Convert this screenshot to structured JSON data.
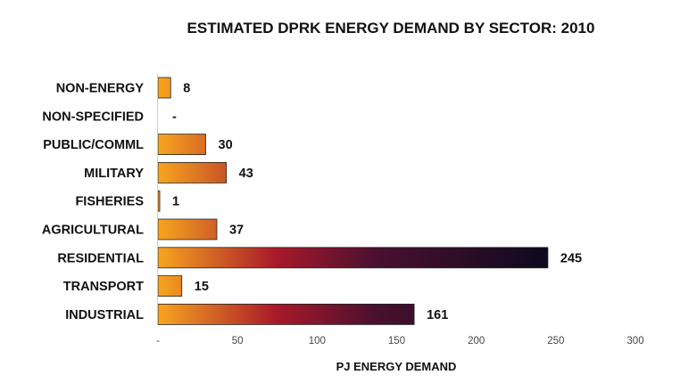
{
  "chart_data": {
    "type": "bar",
    "orientation": "horizontal",
    "title": "ESTIMATED DPRK ENERGY DEMAND BY SECTOR: 2010",
    "xlabel": "PJ ENERGY DEMAND",
    "ylabel": "",
    "categories": [
      "NON-ENERGY",
      "NON-SPECIFIED",
      "PUBLIC/COMML",
      "MILITARY",
      "FISHERIES",
      "AGRICULTURAL",
      "RESIDENTIAL",
      "TRANSPORT",
      "INDUSTRIAL"
    ],
    "values": [
      8,
      0,
      30,
      43,
      1,
      37,
      245,
      15,
      161
    ],
    "value_labels": [
      "8",
      "-",
      "30",
      "43",
      "1",
      "37",
      "245",
      "15",
      "161"
    ],
    "xlim": [
      0,
      300
    ],
    "x_ticks": [
      "-",
      "50",
      "100",
      "150",
      "200",
      "250",
      "300"
    ],
    "grid": false,
    "legend": "none",
    "colors": {
      "gradient_start": "#f7a51f",
      "gradient_mid": "#a8192a",
      "gradient_mid2": "#4a1030",
      "gradient_end": "#0b0a1e",
      "bar_edge": "#222222"
    }
  }
}
